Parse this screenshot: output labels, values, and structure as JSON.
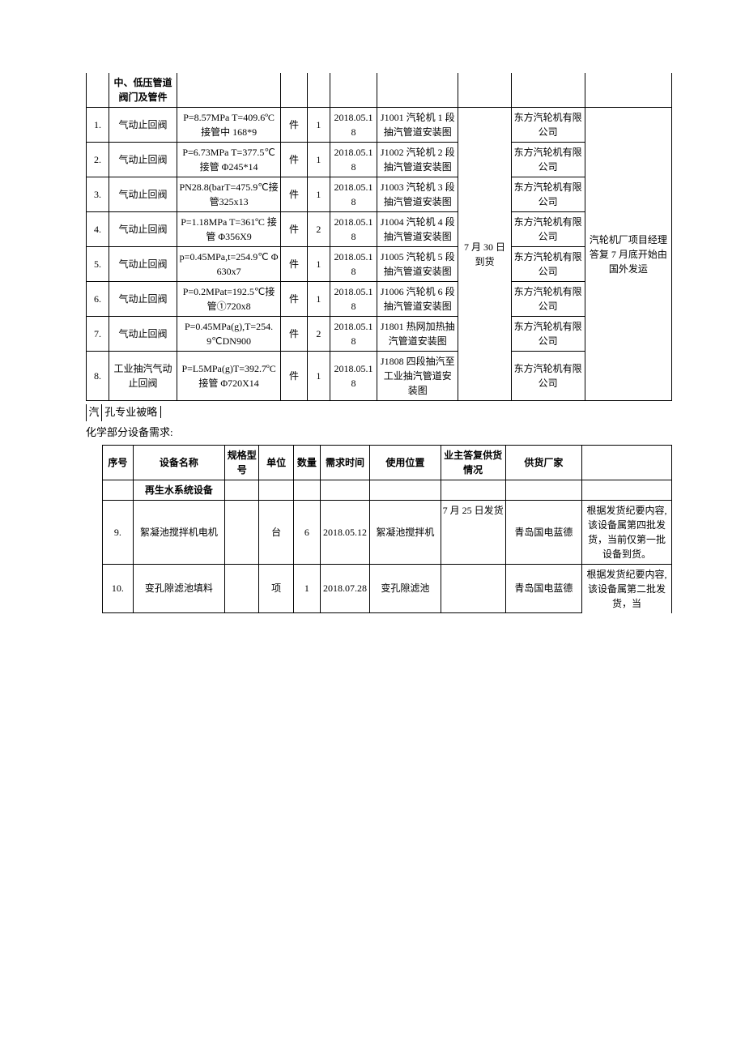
{
  "table1": {
    "header_row": {
      "name": "中、低压管道阀门及管件"
    },
    "merged_owner": "7 月 30 日到货",
    "merged_note": "汽轮机厂项目经理答复 7 月底开始由国外发运",
    "rows": [
      {
        "idx": "1.",
        "name": "气动止回阀",
        "spec": "P=8.57MPa T=409.6ºC 接管中 168*9",
        "unit": "件",
        "qty": "1",
        "date": "2018.05.18",
        "use": "J1001 汽轮机 1 段抽汽管道安装图",
        "supplier": "东方汽轮机有限公司"
      },
      {
        "idx": "2.",
        "name": "气动止回阀",
        "spec": "P=6.73MPa T=377.5℃接管 Φ245*14",
        "unit": "件",
        "qty": "1",
        "date": "2018.05.18",
        "use": "J1002 汽轮机 2 段抽汽管道安装图",
        "supplier": "东方汽轮机有限公司"
      },
      {
        "idx": "3.",
        "name": "气动止回阀",
        "spec": "PN28.8(barT=475.9℃接管325x13",
        "unit": "件",
        "qty": "1",
        "date": "2018.05.18",
        "use": "J1003 汽轮机 3 段抽汽管道安装图",
        "supplier": "东方汽轮机有限公司"
      },
      {
        "idx": "4.",
        "name": "气动止回阀",
        "spec": "P=1.18MPa T=361ºC 接管 Φ356X9",
        "unit": "件",
        "qty": "2",
        "date": "2018.05.18",
        "use": "J1004 汽轮机 4 段抽汽管道安装图",
        "supplier": "东方汽轮机有限公司"
      },
      {
        "idx": "5.",
        "name": "气动止回阀",
        "spec": "p=0.45MPa,t=254.9℃ Φ630x7",
        "unit": "件",
        "qty": "1",
        "date": "2018.05.18",
        "use": "J1005 汽轮机 5 段抽汽管道安装图",
        "supplier": "东方汽轮机有限公司"
      },
      {
        "idx": "6.",
        "name": "气动止回阀",
        "spec": "P=0.2MPat=192.5℃接管①720x8",
        "unit": "件",
        "qty": "1",
        "date": "2018.05.18",
        "use": "J1006 汽轮机 6 段抽汽管道安装图",
        "supplier": "东方汽轮机有限公司"
      },
      {
        "idx": "7.",
        "name": "气动止回阀",
        "spec": "P=0.45MPa(g),T=254.9℃DN900",
        "unit": "件",
        "qty": "2",
        "date": "2018.05.18",
        "use": "J1801 热网加热抽汽管道安装图",
        "supplier": "东方汽轮机有限公司"
      },
      {
        "idx": "8.",
        "name": "工业抽汽气动止回阀",
        "spec": "P=L5MPa(g)T=392.7ºC 接管 Φ720X14",
        "unit": "件",
        "qty": "1",
        "date": "2018.05.18",
        "use": "J1808 四段抽汽至工业抽汽管道安装图",
        "supplier": "东方汽轮机有限公司"
      }
    ]
  },
  "between_text1": "汽",
  "between_text2": "孔专业被略",
  "section2_label": "化学部分设备需求:",
  "table2": {
    "headers": {
      "idx": "序号",
      "name": "设备名称",
      "spec": "规格型号",
      "unit": "单位",
      "qty": "数量",
      "date": "需求时间",
      "use": "使用位置",
      "owner": "业主答复供货情况",
      "supplier": "供货厂家",
      "note": ""
    },
    "group_row": "再生水系统设备",
    "rows": [
      {
        "idx": "9.",
        "name": "絮凝池搅拌机电机",
        "spec": "",
        "unit": "台",
        "qty": "6",
        "date": "2018.05.12",
        "use": "絮凝池搅拌机",
        "owner": "7 月 25 日发货",
        "supplier": "青岛国电蓝德",
        "note": "根据发货纪要内容,该设备属第四批发货，当前仅第一批设备到货。"
      },
      {
        "idx": "10.",
        "name": "变孔隙滤池填料",
        "spec": "",
        "unit": "项",
        "qty": "1",
        "date": "2018.07.28",
        "use": "变孔隙滤池",
        "owner": "",
        "supplier": "青岛国电蓝德",
        "note": "根据发货纪要内容,该设备属第二批发货，当"
      }
    ]
  }
}
